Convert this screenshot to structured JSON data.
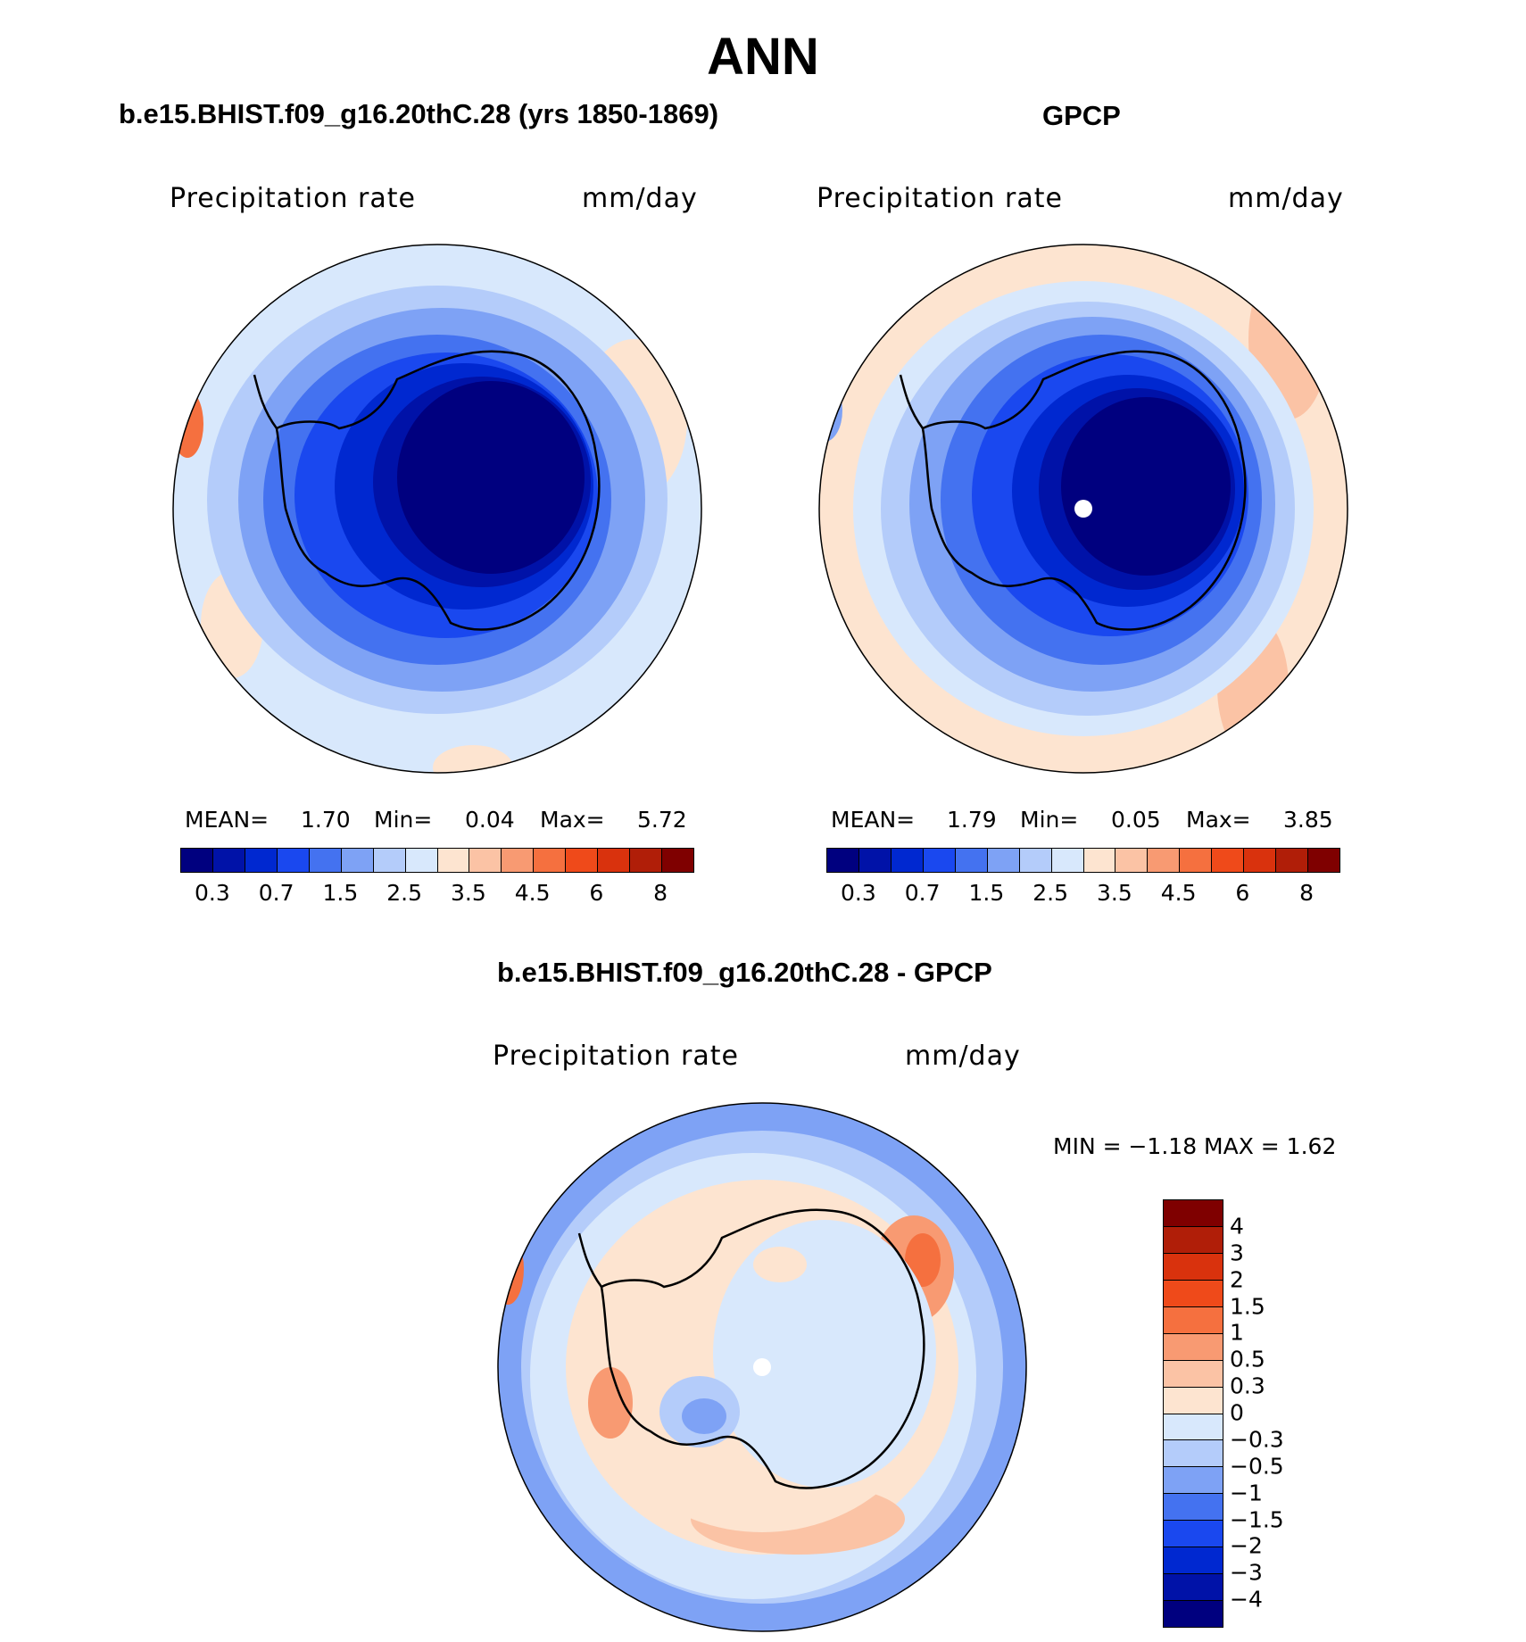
{
  "title": "ANN",
  "panels": [
    {
      "title": "b.e15.BHIST.f09_g16.20thC.28 (yrs 1850-1869)",
      "left_label": "Precipitation rate",
      "right_label": "mm/day",
      "mean_label": "MEAN=",
      "mean_value": "1.70",
      "min_label": "Min=",
      "min_value": "0.04",
      "max_label": "Max=",
      "max_value": "5.72"
    },
    {
      "title": "GPCP",
      "left_label": "Precipitation rate",
      "right_label": "mm/day",
      "mean_label": "MEAN=",
      "mean_value": "1.79",
      "min_label": "Min=",
      "min_value": "0.05",
      "max_label": "Max=",
      "max_value": "3.85"
    }
  ],
  "diff_panel": {
    "title": "b.e15.BHIST.f09_g16.20thC.28 - GPCP",
    "left_label": "Precipitation rate",
    "right_label": "mm/day",
    "minmax_text": "MIN = −1.18 MAX = 1.62"
  },
  "colorbar": {
    "tick_labels": [
      "0.3",
      "0.7",
      "1.5",
      "2.5",
      "3.5",
      "4.5",
      "6",
      "8"
    ],
    "colors": [
      "#00007f",
      "#0012a8",
      "#0028d0",
      "#1a48ef",
      "#4472f0",
      "#7ea2f5",
      "#b4ccfa",
      "#d8e8fc",
      "#fde4d0",
      "#fbc3a5",
      "#f89a72",
      "#f5703f",
      "#ef4a1a",
      "#d9320d",
      "#b01e08",
      "#7f0000"
    ]
  },
  "diff_colorbar": {
    "tick_labels": [
      "4",
      "3",
      "2",
      "1.5",
      "1",
      "0.5",
      "0.3",
      "0",
      "−0.3",
      "−0.5",
      "−1",
      "−1.5",
      "−2",
      "−3",
      "−4"
    ],
    "colors": [
      "#7f0000",
      "#b01e08",
      "#d9320d",
      "#ef4a1a",
      "#f5703f",
      "#f89a72",
      "#fbc3a5",
      "#fde4d0",
      "#d8e8fc",
      "#b4ccfa",
      "#7ea2f5",
      "#4472f0",
      "#1a48ef",
      "#0028d0",
      "#0012a8",
      "#00007f"
    ]
  }
}
